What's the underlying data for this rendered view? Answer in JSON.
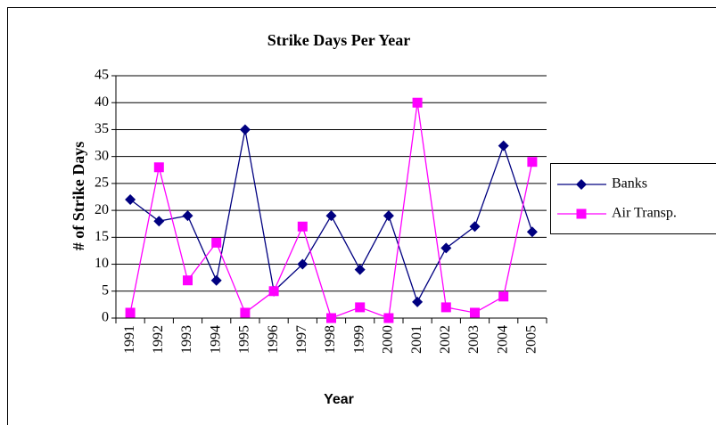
{
  "chart_data": {
    "type": "line",
    "title": "Strike Days Per Year",
    "xlabel": "Year",
    "ylabel": "# of Strike Days",
    "categories": [
      "1991",
      "1992",
      "1993",
      "1994",
      "1995",
      "1996",
      "1997",
      "1998",
      "1999",
      "2000",
      "2001",
      "2002",
      "2003",
      "2004",
      "2005"
    ],
    "series": [
      {
        "name": "Banks",
        "color": "#000080",
        "marker": "diamond",
        "values": [
          22,
          18,
          19,
          7,
          35,
          5,
          10,
          19,
          9,
          19,
          3,
          13,
          17,
          32,
          16
        ]
      },
      {
        "name": "Air Transp.",
        "color": "#ff00ff",
        "marker": "square",
        "values": [
          1,
          28,
          7,
          14,
          1,
          5,
          17,
          0,
          2,
          0,
          40,
          2,
          1,
          4,
          29
        ]
      }
    ],
    "ylim": [
      0,
      45
    ],
    "yticks": [
      0,
      5,
      10,
      15,
      20,
      25,
      30,
      35,
      40,
      45
    ],
    "grid": true,
    "legend": "right"
  }
}
